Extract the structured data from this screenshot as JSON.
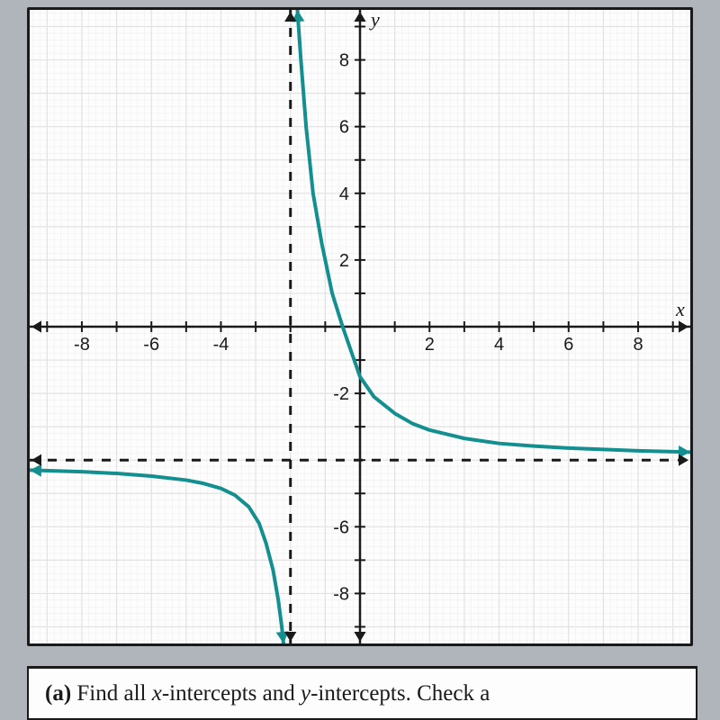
{
  "chart": {
    "type": "line",
    "background_color": "#fdfdfd",
    "grid_major_color": "#e2e2e2",
    "grid_minor_color": "#efefef",
    "axis_color": "#1a1a1a",
    "axis_width": 2.5,
    "border_color": "#1a1a1a",
    "xlim": [
      -9.5,
      9.5
    ],
    "ylim": [
      -9.5,
      9.5
    ],
    "xtick_step": 1,
    "ytick_step": 1,
    "xlabel_ticks": [
      -8,
      -6,
      -4,
      2,
      4,
      6,
      8
    ],
    "ylabel_ticks_pos": [
      2,
      4,
      6,
      8
    ],
    "ylabel_ticks_neg": [
      -2,
      -6,
      -8
    ],
    "tick_fontsize": 20,
    "axis_labels": {
      "x": "x",
      "y": "y"
    },
    "axis_label_fontsize": 22,
    "asymptotes": {
      "vertical": -2,
      "horizontal": -4,
      "color": "#1a1a1a",
      "dash": "10,10",
      "width": 3
    },
    "curve": {
      "color": "#138f8f",
      "width": 4,
      "branch_right": [
        [
          -1.8,
          9.5
        ],
        [
          -1.7,
          8.0
        ],
        [
          -1.55,
          6.0
        ],
        [
          -1.35,
          4.0
        ],
        [
          -1.1,
          2.5
        ],
        [
          -0.8,
          1.0
        ],
        [
          -0.5,
          0.0
        ],
        [
          -0.2,
          -0.9
        ],
        [
          0.0,
          -1.5
        ],
        [
          0.4,
          -2.1
        ],
        [
          1.0,
          -2.6
        ],
        [
          1.5,
          -2.9
        ],
        [
          2.0,
          -3.1
        ],
        [
          3.0,
          -3.35
        ],
        [
          4.0,
          -3.5
        ],
        [
          5.0,
          -3.58
        ],
        [
          6.0,
          -3.64
        ],
        [
          7.0,
          -3.68
        ],
        [
          8.0,
          -3.72
        ],
        [
          9.5,
          -3.76
        ]
      ],
      "branch_left": [
        [
          -9.5,
          -4.3
        ],
        [
          -8.0,
          -4.35
        ],
        [
          -7.0,
          -4.4
        ],
        [
          -6.0,
          -4.48
        ],
        [
          -5.0,
          -4.6
        ],
        [
          -4.5,
          -4.7
        ],
        [
          -4.0,
          -4.85
        ],
        [
          -3.6,
          -5.05
        ],
        [
          -3.2,
          -5.4
        ],
        [
          -2.9,
          -5.9
        ],
        [
          -2.7,
          -6.5
        ],
        [
          -2.5,
          -7.3
        ],
        [
          -2.35,
          -8.2
        ],
        [
          -2.25,
          -9.0
        ],
        [
          -2.2,
          -9.5
        ]
      ]
    }
  },
  "question": {
    "label": "(a)",
    "text_before": "Find all ",
    "var1": "x",
    "text_mid1": "-intercepts and ",
    "var2": "y",
    "text_mid2": "-intercepts. Check a"
  }
}
